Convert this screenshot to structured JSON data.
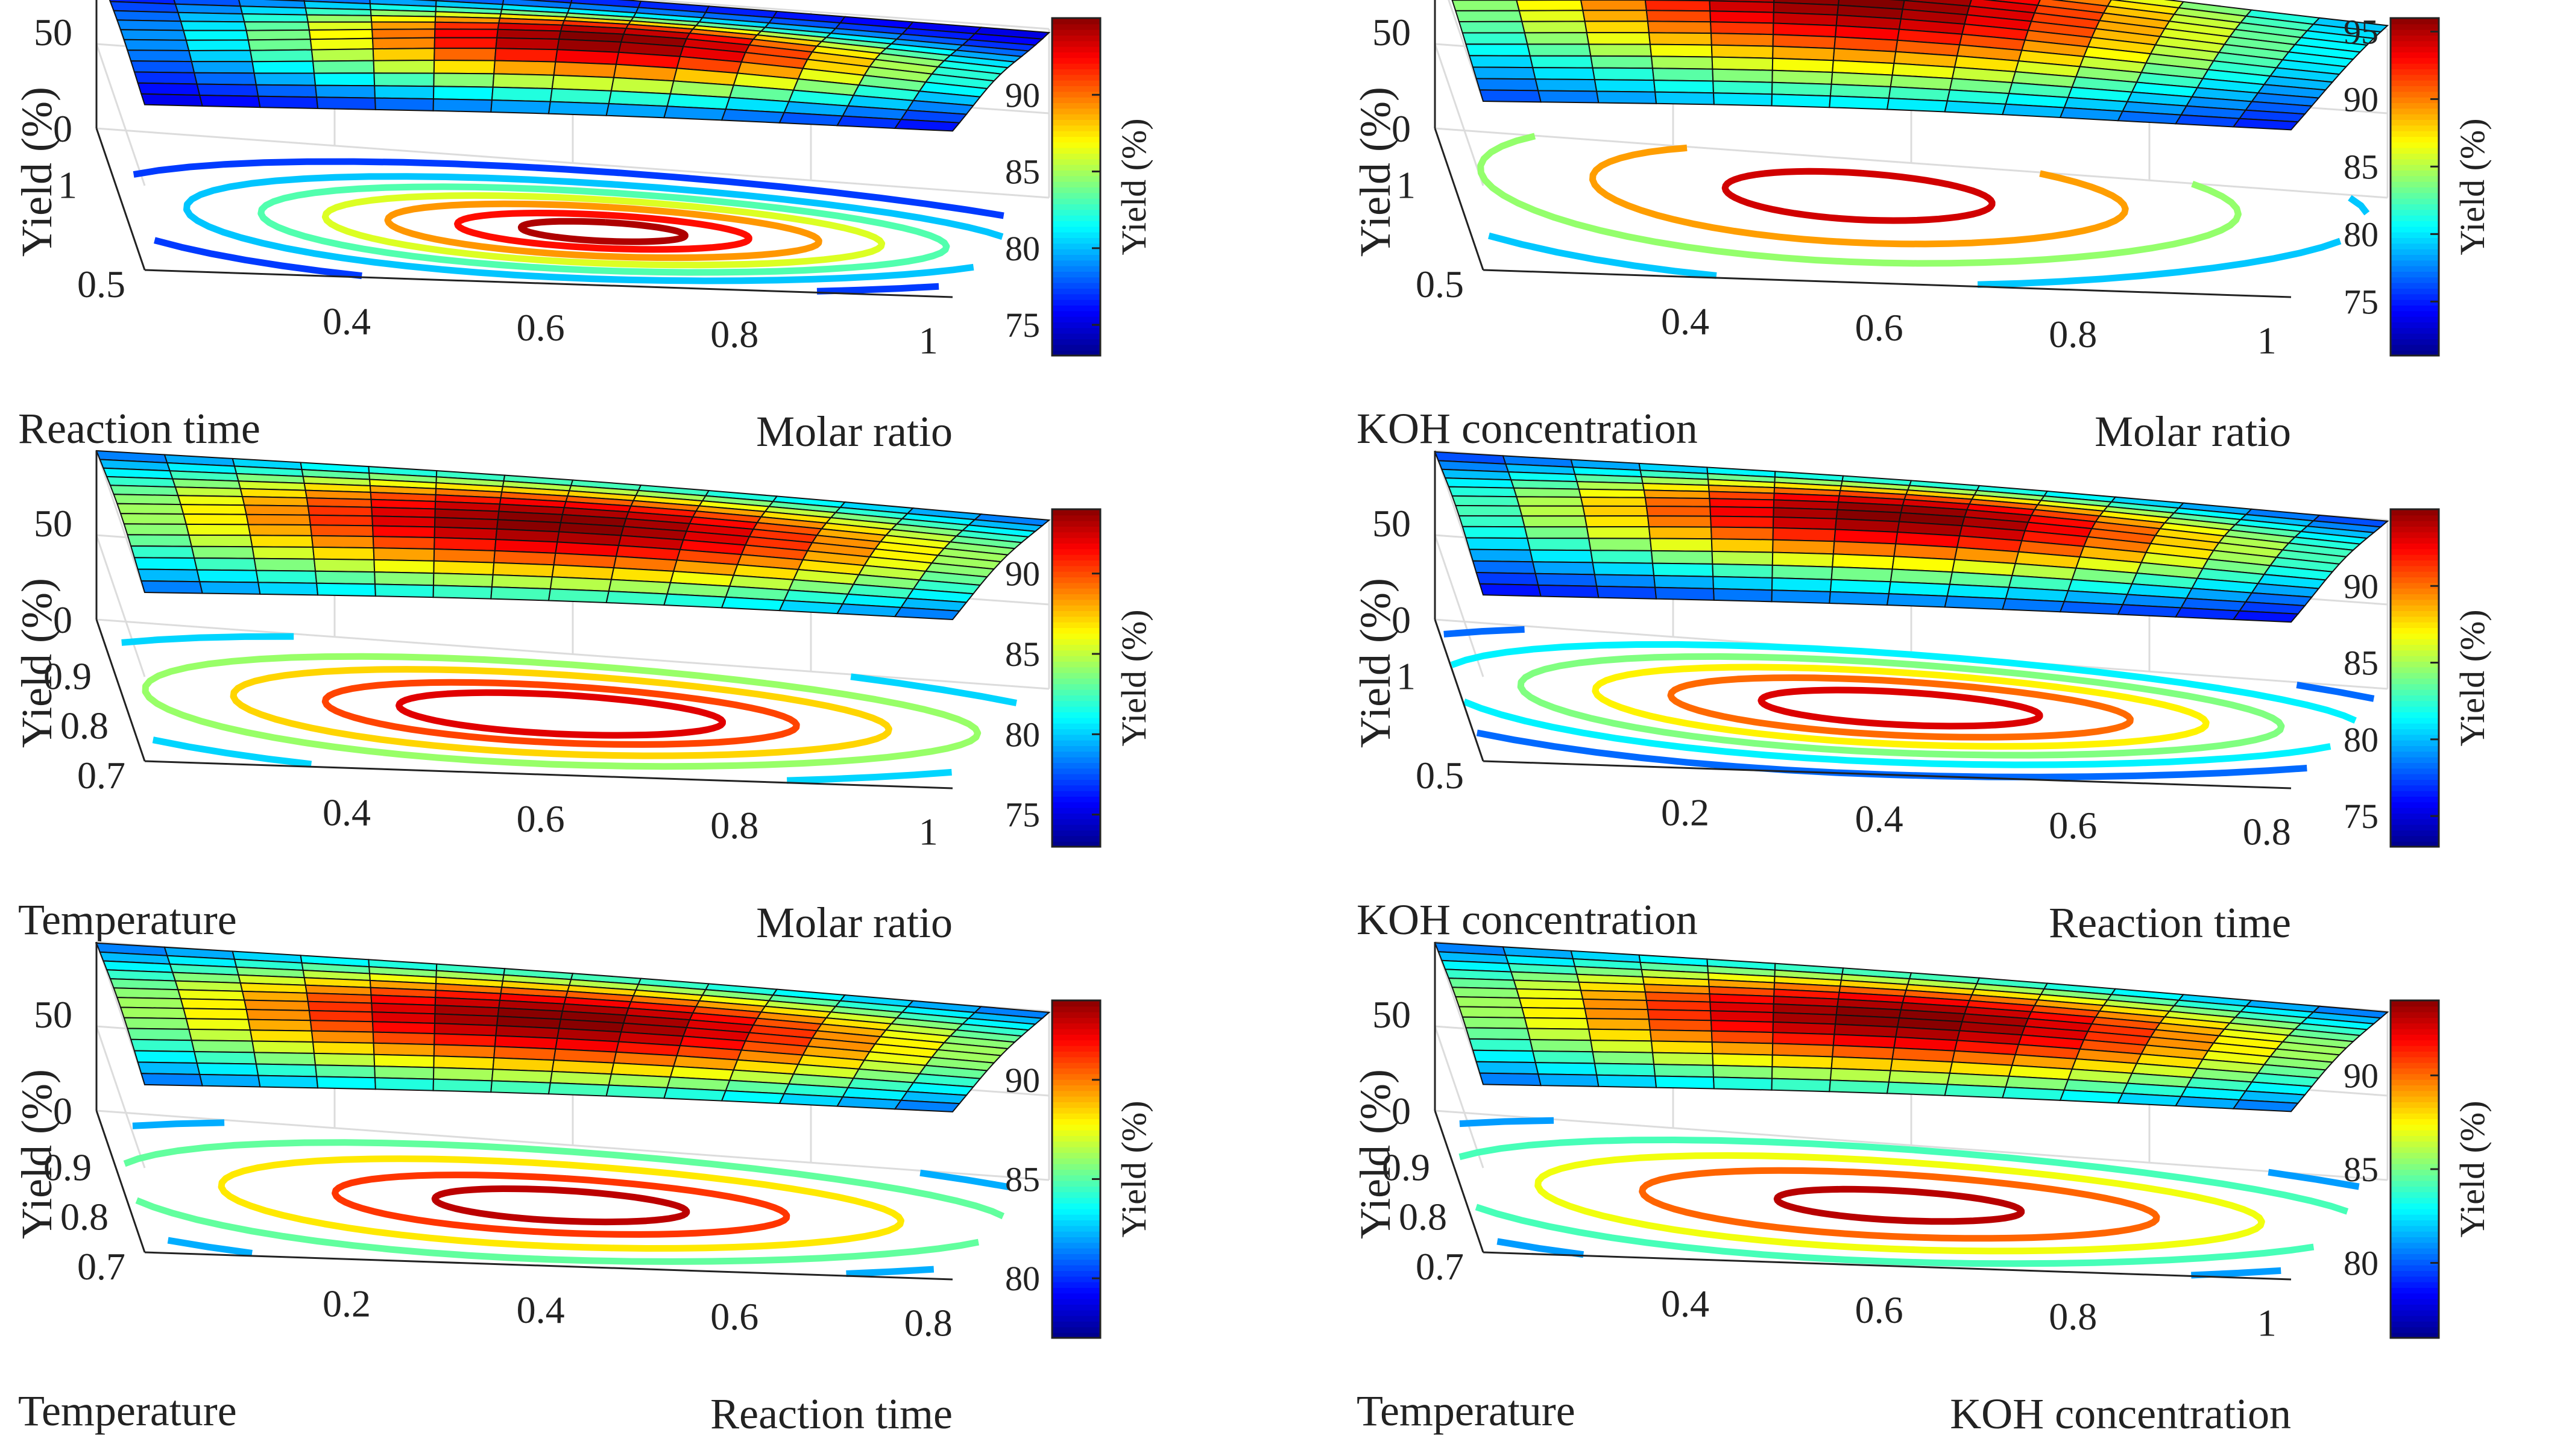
{
  "colors": {
    "colormap": [
      "#00008f",
      "#0000ff",
      "#0080ff",
      "#00ffff",
      "#80ff80",
      "#ffff00",
      "#ff8000",
      "#ff0000",
      "#800000"
    ],
    "axis": "#222222",
    "grid": "#dcdcdc",
    "mesh_edge": "#111111"
  },
  "chart_data": [
    {
      "type": "surface",
      "title": "",
      "xlabel": "Reaction time",
      "ylabel": "Molar ratio",
      "zlabel": "Yield (%)",
      "x_ticks": [
        "0.5",
        "1"
      ],
      "y_ticks": [
        "0.4",
        "0.6",
        "0.8",
        "1"
      ],
      "z_ticks": [
        "0",
        "50"
      ],
      "colorbar": {
        "label": "Yield (%)",
        "ticks": [
          "75",
          "80",
          "85",
          "90"
        ],
        "range": [
          73,
          95
        ]
      },
      "surface": {
        "z_min": 73,
        "z_max": 95,
        "peak_x": 0.45,
        "peak_y": 0.55,
        "x_spread": 0.25,
        "y_spread": 0.3
      },
      "contour_levels": [
        74,
        77,
        80,
        83,
        86,
        89,
        92,
        94
      ]
    },
    {
      "type": "surface",
      "title": "",
      "xlabel": "KOH concentration",
      "ylabel": "Molar ratio",
      "zlabel": "Yield (%)",
      "x_ticks": [
        "0.5",
        "1"
      ],
      "y_ticks": [
        "0.4",
        "0.6",
        "0.8",
        "1"
      ],
      "z_ticks": [
        "0",
        "50"
      ],
      "colorbar": {
        "label": "Yield (%)",
        "ticks": [
          "75",
          "80",
          "85",
          "90",
          "95"
        ],
        "range": [
          71,
          96
        ]
      },
      "surface": {
        "z_min": 71,
        "z_max": 96,
        "peak_x": 0.7,
        "peak_y": 0.45,
        "x_spread": 0.45,
        "y_spread": 0.35
      },
      "contour_levels": [
        74,
        79,
        84,
        89,
        94
      ]
    },
    {
      "type": "surface",
      "title": "",
      "xlabel": "Temperature",
      "ylabel": "Molar ratio",
      "zlabel": "Yield (%)",
      "x_ticks": [
        "0.7",
        "0.8",
        "0.9"
      ],
      "y_ticks": [
        "0.4",
        "0.6",
        "0.8",
        "1"
      ],
      "z_ticks": [
        "0",
        "50"
      ],
      "colorbar": {
        "label": "Yield (%)",
        "ticks": [
          "75",
          "80",
          "85",
          "90"
        ],
        "range": [
          73,
          94
        ]
      },
      "surface": {
        "z_min": 73,
        "z_max": 94,
        "peak_x": 0.5,
        "peak_y": 0.5,
        "x_spread": 0.35,
        "y_spread": 0.4
      },
      "contour_levels": [
        76,
        80,
        84,
        87,
        90,
        92
      ]
    },
    {
      "type": "surface",
      "title": "",
      "xlabel": "KOH concentration",
      "ylabel": "Reaction time",
      "zlabel": "Yield (%)",
      "x_ticks": [
        "0.5",
        "1"
      ],
      "y_ticks": [
        "0.2",
        "0.4",
        "0.6",
        "0.8"
      ],
      "z_ticks": [
        "0",
        "50"
      ],
      "colorbar": {
        "label": "Yield (%)",
        "ticks": [
          "75",
          "80",
          "85",
          "90"
        ],
        "range": [
          73,
          95
        ]
      },
      "surface": {
        "z_min": 73,
        "z_max": 95,
        "peak_x": 0.55,
        "peak_y": 0.5,
        "x_spread": 0.3,
        "y_spread": 0.35
      },
      "contour_levels": [
        75,
        78,
        81,
        84,
        87,
        90,
        93
      ]
    },
    {
      "type": "surface",
      "title": "",
      "xlabel": "Temperature",
      "ylabel": "Reaction time",
      "zlabel": "Yield (%)",
      "x_ticks": [
        "0.7",
        "0.8",
        "0.9"
      ],
      "y_ticks": [
        "0.2",
        "0.4",
        "0.6",
        "0.8"
      ],
      "z_ticks": [
        "0",
        "50"
      ],
      "colorbar": {
        "label": "Yield (%)",
        "ticks": [
          "80",
          "85",
          "90"
        ],
        "range": [
          77,
          94
        ]
      },
      "surface": {
        "z_min": 77,
        "z_max": 94,
        "peak_x": 0.5,
        "peak_y": 0.5,
        "x_spread": 0.35,
        "y_spread": 0.4
      },
      "contour_levels": [
        79,
        82,
        85,
        88,
        91,
        93
      ]
    },
    {
      "type": "surface",
      "title": "",
      "xlabel": "Temperature",
      "ylabel": "KOH concentration",
      "zlabel": "Yield (%)",
      "x_ticks": [
        "0.7",
        "0.8",
        "0.9"
      ],
      "y_ticks": [
        "0.4",
        "0.6",
        "0.8",
        "1"
      ],
      "z_ticks": [
        "0",
        "50"
      ],
      "colorbar": {
        "label": "Yield (%)",
        "ticks": [
          "80",
          "85",
          "90"
        ],
        "range": [
          76,
          94
        ]
      },
      "surface": {
        "z_min": 76,
        "z_max": 94,
        "peak_x": 0.5,
        "peak_y": 0.5,
        "x_spread": 0.35,
        "y_spread": 0.4
      },
      "contour_levels": [
        78,
        81,
        84,
        87,
        90,
        93
      ]
    }
  ]
}
